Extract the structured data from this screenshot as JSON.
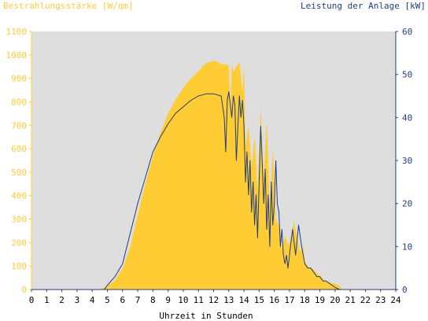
{
  "chart_data": {
    "type": "area",
    "left_axis_title": "Bestrahlungsstärke [W/qm]",
    "right_axis_title": "Leistung der Anlage [kW]",
    "xlabel": "Uhrzeit in Stunden",
    "xlim": [
      0,
      24
    ],
    "x_ticks": [
      "0",
      "1",
      "2",
      "3",
      "4",
      "5",
      "6",
      "7",
      "8",
      "9",
      "10",
      "11",
      "12",
      "13",
      "14",
      "15",
      "16",
      "17",
      "18",
      "19",
      "20",
      "21",
      "22",
      "23",
      "24"
    ],
    "ylim_left": [
      0,
      1100
    ],
    "left_ticks": [
      "0",
      "100",
      "200",
      "300",
      "400",
      "500",
      "600",
      "700",
      "800",
      "900",
      "1000",
      "1100"
    ],
    "ylim_right": [
      0,
      60
    ],
    "right_ticks": [
      "0",
      "10",
      "20",
      "30",
      "40",
      "50",
      "60"
    ],
    "grid": false,
    "colors": {
      "irradiance": "#ffcc33",
      "power": "#1f3f7f",
      "left_axis": "#ffcc33",
      "right_axis": "#1f3f7f",
      "plot_bg": "#dedede",
      "x_axis_text": "#000000"
    },
    "series": [
      {
        "name": "Bestrahlungsstärke [W/qm]",
        "axis": "left",
        "style": "filled-area",
        "x": [
          0,
          4.5,
          5,
          5.5,
          6,
          6.5,
          7,
          7.5,
          8,
          8.5,
          9,
          9.5,
          10,
          10.5,
          11,
          11.25,
          11.5,
          11.75,
          12,
          12.25,
          12.5,
          12.75,
          13,
          13.1,
          13.2,
          13.3,
          13.5,
          13.7,
          13.9,
          14,
          14.1,
          14.3,
          14.5,
          14.7,
          14.9,
          15,
          15.1,
          15.3,
          15.5,
          15.7,
          15.9,
          16,
          16.1,
          16.3,
          16.5,
          16.7,
          16.9,
          17,
          17.3,
          17.5,
          17.7,
          17.9,
          18,
          18.2,
          18.5,
          18.8,
          19,
          19.3,
          19.6,
          20,
          20.3,
          20.5,
          20.7,
          21,
          24
        ],
        "y": [
          0,
          0,
          15,
          40,
          90,
          180,
          320,
          450,
          570,
          670,
          750,
          810,
          860,
          900,
          930,
          950,
          965,
          970,
          975,
          970,
          960,
          960,
          955,
          780,
          960,
          930,
          950,
          970,
          840,
          960,
          610,
          700,
          520,
          650,
          420,
          580,
          780,
          470,
          720,
          350,
          600,
          470,
          300,
          270,
          170,
          230,
          190,
          200,
          290,
          220,
          160,
          180,
          120,
          100,
          90,
          70,
          60,
          40,
          30,
          25,
          15,
          0,
          0,
          0,
          0
        ]
      },
      {
        "name": "Leistung der Anlage [kW]",
        "axis": "right",
        "style": "line",
        "x": [
          0,
          4.8,
          5,
          5.5,
          6,
          6.5,
          7,
          7.5,
          8,
          8.5,
          9,
          9.5,
          10,
          10.5,
          11,
          11.5,
          12,
          12.5,
          12.7,
          12.8,
          12.9,
          13,
          13.1,
          13.2,
          13.3,
          13.4,
          13.5,
          13.6,
          13.7,
          13.8,
          13.9,
          14,
          14.1,
          14.2,
          14.3,
          14.4,
          14.5,
          14.6,
          14.7,
          14.8,
          14.9,
          15,
          15.1,
          15.2,
          15.3,
          15.4,
          15.5,
          15.6,
          15.7,
          15.8,
          15.9,
          16,
          16.1,
          16.2,
          16.3,
          16.4,
          16.5,
          16.6,
          16.7,
          16.8,
          16.9,
          17,
          17.2,
          17.4,
          17.6,
          17.8,
          18,
          18.2,
          18.4,
          18.6,
          18.8,
          19,
          19.2,
          19.4,
          19.6,
          19.8,
          20,
          20.3,
          24
        ],
        "y": [
          0,
          0,
          1,
          3,
          6,
          13,
          20,
          26,
          32,
          35.5,
          38.5,
          41,
          42.5,
          44,
          45,
          45.5,
          45.5,
          45,
          40,
          32,
          44,
          46,
          43,
          40,
          45,
          43,
          30,
          38,
          45,
          40,
          44,
          38,
          25,
          32,
          22,
          30,
          18,
          25,
          15,
          22,
          12,
          25,
          38,
          30,
          20,
          28,
          14,
          22,
          10,
          25,
          15,
          20,
          30,
          20,
          18,
          10,
          14,
          8,
          6,
          8,
          5,
          8,
          14,
          8,
          15,
          10,
          6,
          5,
          5,
          4,
          3,
          3,
          2,
          2,
          1.5,
          1,
          0.5,
          0,
          0
        ]
      }
    ]
  }
}
